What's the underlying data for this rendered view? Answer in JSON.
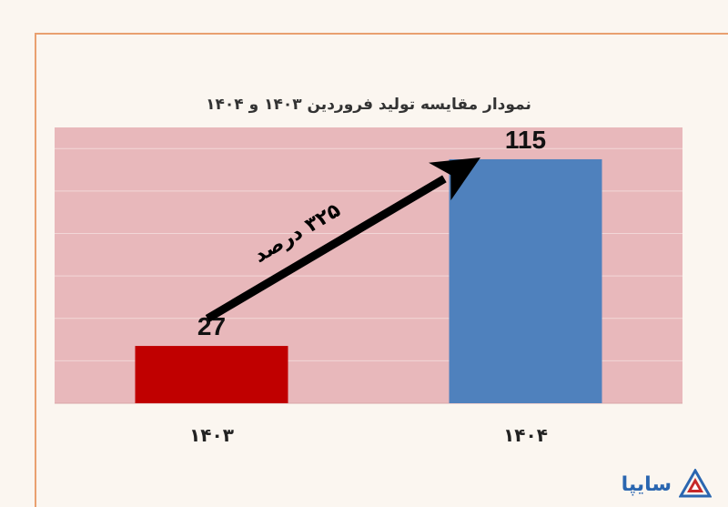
{
  "chart_data": {
    "type": "bar",
    "title": "نمودار  مقایسه تولید فروردین ۱۴۰۳ و ۱۴۰۴",
    "categories": [
      "۱۴۰۳",
      "۱۴۰۴"
    ],
    "values": [
      27,
      115
    ],
    "value_labels": [
      "27",
      "115"
    ],
    "bar_colors": [
      "#c00000",
      "#4f81bd"
    ],
    "ylim": [
      0,
      130
    ],
    "grid": true,
    "plot_background": "#e8b8bb",
    "annotation": {
      "text": "۳۲۵ درصد",
      "type": "arrow"
    }
  },
  "logo": {
    "text": "سایپا",
    "color": "#2a66b0"
  }
}
